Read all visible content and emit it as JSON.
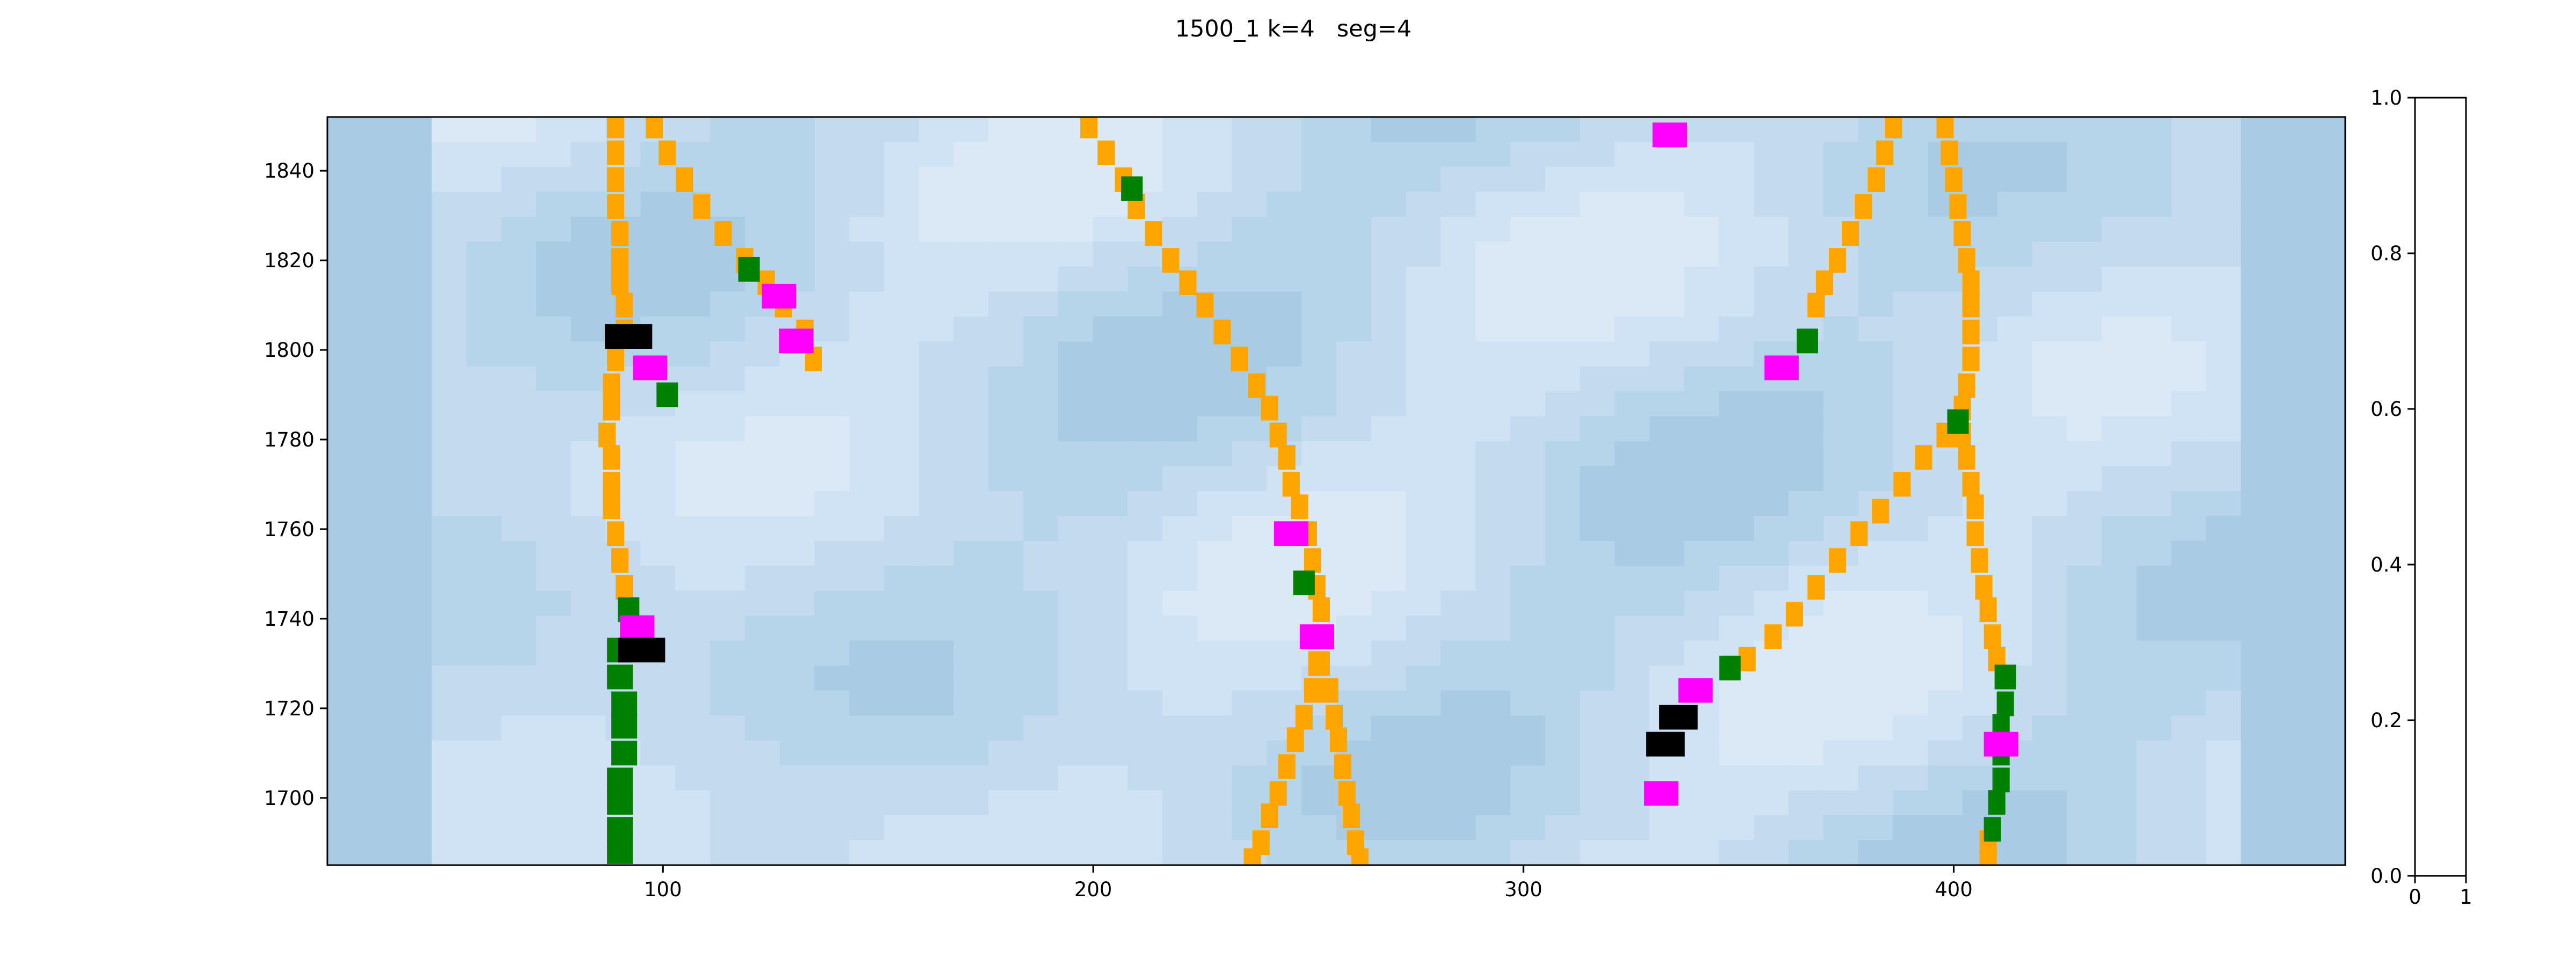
{
  "chart_data": [
    {
      "type": "heatmap",
      "title": "1500_1 k=4   seg=4",
      "xlabel": "",
      "ylabel": "",
      "xlim": [
        22,
        491
      ],
      "ylim": [
        1685,
        1852
      ],
      "grid": false,
      "cell_height": 5.5,
      "background_colors": [
        "#a9cce4",
        "#b6d4ea",
        "#c3daef",
        "#d0e3f5",
        "#dbe9f7"
      ],
      "x_tick_labels": [
        "100",
        "200",
        "300",
        "400"
      ],
      "x_ticks": [
        100,
        200,
        300,
        400
      ],
      "y_tick_labels": [
        "1700",
        "1720",
        "1740",
        "1760",
        "1780",
        "1800",
        "1820",
        "1840"
      ],
      "y_ticks": [
        1700,
        1720,
        1740,
        1760,
        1780,
        1800,
        1820,
        1840
      ],
      "legend": [
        {
          "label": "none",
          "color": "#ffa500"
        },
        {
          "label": "none",
          "color": "#008000"
        },
        {
          "label": "none",
          "color": "#ff00ff"
        },
        {
          "label": "none",
          "color": "#000000"
        }
      ],
      "series": [
        {
          "color": "#ffa500",
          "width": 4,
          "points": [
            [
              89,
              1850
            ],
            [
              89,
              1844
            ],
            [
              89,
              1838
            ],
            [
              89,
              1832
            ],
            [
              90,
              1826
            ],
            [
              90,
              1820
            ],
            [
              90,
              1815
            ],
            [
              91,
              1810
            ],
            [
              91,
              1804
            ],
            [
              89,
              1798
            ],
            [
              88,
              1792
            ],
            [
              88,
              1787
            ],
            [
              87,
              1781
            ],
            [
              88,
              1776
            ],
            [
              88,
              1770
            ],
            [
              88,
              1765
            ],
            [
              89,
              1759
            ],
            [
              90,
              1753
            ],
            [
              91,
              1747
            ],
            [
              92,
              1742
            ]
          ]
        },
        {
          "color": "#ffa500",
          "width": 4,
          "points": [
            [
              98,
              1850
            ],
            [
              101,
              1844
            ],
            [
              105,
              1838
            ],
            [
              109,
              1832
            ],
            [
              114,
              1826
            ],
            [
              119,
              1820
            ],
            [
              124,
              1815
            ],
            [
              128,
              1810
            ],
            [
              133,
              1804
            ],
            [
              135,
              1798
            ]
          ]
        },
        {
          "color": "#ffa500",
          "width": 4,
          "points": [
            [
              199,
              1850
            ],
            [
              203,
              1844
            ],
            [
              207,
              1838
            ],
            [
              210,
              1832
            ],
            [
              214,
              1826
            ],
            [
              218,
              1820
            ],
            [
              222,
              1815
            ],
            [
              226,
              1810
            ],
            [
              230,
              1804
            ],
            [
              234,
              1798
            ],
            [
              238,
              1792
            ],
            [
              241,
              1787
            ],
            [
              243,
              1781
            ],
            [
              245,
              1776
            ],
            [
              246,
              1770
            ],
            [
              248,
              1765
            ],
            [
              250,
              1759
            ],
            [
              251,
              1753
            ],
            [
              252,
              1747
            ],
            [
              253,
              1742
            ],
            [
              253,
              1736
            ],
            [
              252,
              1730
            ],
            [
              251,
              1724
            ],
            [
              249,
              1718
            ],
            [
              247,
              1713
            ],
            [
              245,
              1707
            ],
            [
              243,
              1701
            ],
            [
              241,
              1696
            ],
            [
              239,
              1690
            ],
            [
              237,
              1686
            ]
          ]
        },
        {
          "color": "#ffa500",
          "width": 4,
          "points": [
            [
              253,
              1730
            ],
            [
              255,
              1724
            ],
            [
              256,
              1718
            ],
            [
              257,
              1713
            ],
            [
              258,
              1707
            ],
            [
              259,
              1701
            ],
            [
              260,
              1696
            ],
            [
              261,
              1690
            ],
            [
              262,
              1686
            ]
          ]
        },
        {
          "color": "#ffa500",
          "width": 4,
          "points": [
            [
              386,
              1850
            ],
            [
              384,
              1844
            ],
            [
              382,
              1838
            ],
            [
              379,
              1832
            ],
            [
              376,
              1826
            ],
            [
              373,
              1820
            ],
            [
              370,
              1815
            ],
            [
              368,
              1810
            ]
          ]
        },
        {
          "color": "#ffa500",
          "width": 4,
          "points": [
            [
              398,
              1850
            ],
            [
              399,
              1844
            ],
            [
              400,
              1838
            ],
            [
              401,
              1832
            ],
            [
              402,
              1826
            ],
            [
              403,
              1820
            ],
            [
              404,
              1815
            ],
            [
              404,
              1810
            ],
            [
              404,
              1804
            ],
            [
              404,
              1798
            ],
            [
              403,
              1792
            ],
            [
              402,
              1787
            ],
            [
              402,
              1781
            ],
            [
              403,
              1776
            ],
            [
              404,
              1770
            ],
            [
              405,
              1765
            ],
            [
              405,
              1759
            ],
            [
              406,
              1753
            ],
            [
              407,
              1747
            ],
            [
              408,
              1742
            ],
            [
              409,
              1736
            ],
            [
              410,
              1731
            ]
          ]
        },
        {
          "color": "#ffa500",
          "width": 4,
          "points": [
            [
              398,
              1781
            ],
            [
              393,
              1776
            ],
            [
              388,
              1770
            ],
            [
              383,
              1764
            ],
            [
              378,
              1759
            ],
            [
              373,
              1753
            ],
            [
              368,
              1747
            ],
            [
              363,
              1741
            ],
            [
              358,
              1736
            ],
            [
              352,
              1731
            ]
          ]
        },
        {
          "color": "#ffa500",
          "width": 4,
          "points": [
            [
              408,
              1690
            ],
            [
              408,
              1686
            ]
          ]
        },
        {
          "color": "#008000",
          "width": 6,
          "points": [
            [
              90,
              1733
            ],
            [
              90,
              1727
            ],
            [
              91,
              1721
            ],
            [
              91,
              1716
            ],
            [
              91,
              1710
            ],
            [
              90,
              1704
            ],
            [
              90,
              1699
            ],
            [
              90,
              1693
            ],
            [
              90,
              1688
            ]
          ]
        },
        {
          "color": "#008000",
          "width": 4,
          "points": [
            [
              412,
              1727
            ],
            [
              412,
              1721
            ],
            [
              411,
              1716
            ],
            [
              411,
              1710
            ],
            [
              411,
              1704
            ],
            [
              410,
              1699
            ],
            [
              409,
              1693
            ]
          ]
        }
      ],
      "markers": [
        {
          "color": "#ff00ff",
          "width": 8,
          "points": [
            [
              334,
              1848
            ]
          ]
        },
        {
          "color": "#008000",
          "width": 5,
          "points": [
            [
              209,
              1836
            ],
            [
              120,
              1818
            ],
            [
              101,
              1790
            ],
            [
              366,
              1802
            ],
            [
              401,
              1784
            ],
            [
              249,
              1748
            ],
            [
              92,
              1742
            ],
            [
              348,
              1729
            ],
            [
              412,
              1727
            ]
          ]
        },
        {
          "color": "#ff00ff",
          "width": 8,
          "points": [
            [
              127,
              1812
            ],
            [
              131,
              1802
            ],
            [
              97,
              1796
            ],
            [
              360,
              1796
            ],
            [
              246,
              1759
            ],
            [
              252,
              1736
            ],
            [
              94,
              1738
            ],
            [
              340,
              1724
            ],
            [
              411,
              1712
            ],
            [
              332,
              1701
            ]
          ]
        },
        {
          "color": "#000000",
          "width": 11,
          "points": [
            [
              92,
              1803
            ],
            [
              95,
              1733
            ]
          ]
        },
        {
          "color": "#000000",
          "width": 9,
          "points": [
            [
              336,
              1718
            ],
            [
              333,
              1712
            ]
          ]
        }
      ]
    },
    {
      "type": "heatmap",
      "title": "",
      "xlim": [
        0,
        1
      ],
      "ylim": [
        0,
        1
      ],
      "x_tick_labels": [
        "0",
        "1"
      ],
      "x_ticks": [
        0,
        1
      ],
      "y_tick_labels": [
        "0.0",
        "0.2",
        "0.4",
        "0.6",
        "0.8",
        "1.0"
      ],
      "y_ticks": [
        0.0,
        0.2,
        0.4,
        0.6,
        0.8,
        1.0
      ],
      "grid": false
    }
  ]
}
